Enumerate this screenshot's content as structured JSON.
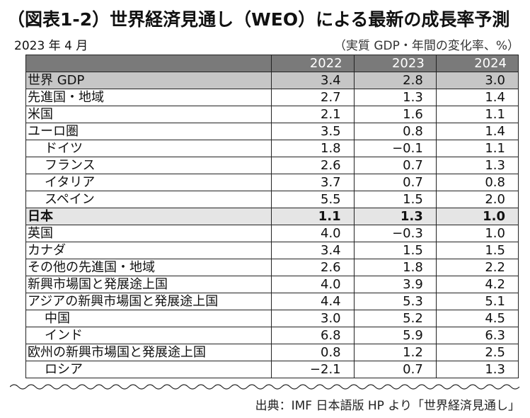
{
  "title": "（図表1-2）世界経済見通し（WEO）による最新の成長率予測",
  "date": "2023 年 4 月",
  "unit": "（実質 GDP・年間の変化率、%）",
  "columns": [
    "2022",
    "2023",
    "2024"
  ],
  "rows": [
    {
      "label": "世界 GDP",
      "values": [
        "3.4",
        "2.8",
        "3.0"
      ],
      "indent": false,
      "style": "world"
    },
    {
      "label": "先進国・地域",
      "values": [
        "2.7",
        "1.3",
        "1.4"
      ],
      "indent": false,
      "style": ""
    },
    {
      "label": "米国",
      "values": [
        "2.1",
        "1.6",
        "1.1"
      ],
      "indent": false,
      "style": ""
    },
    {
      "label": "ユーロ圏",
      "values": [
        "3.5",
        "0.8",
        "1.4"
      ],
      "indent": false,
      "style": ""
    },
    {
      "label": "ドイツ",
      "values": [
        "1.8",
        "−0.1",
        "1.1"
      ],
      "indent": true,
      "style": ""
    },
    {
      "label": "フランス",
      "values": [
        "2.6",
        "0.7",
        "1.3"
      ],
      "indent": true,
      "style": ""
    },
    {
      "label": "イタリア",
      "values": [
        "3.7",
        "0.7",
        "0.8"
      ],
      "indent": true,
      "style": ""
    },
    {
      "label": "スペイン",
      "values": [
        "5.5",
        "1.5",
        "2.0"
      ],
      "indent": true,
      "style": ""
    },
    {
      "label": "日本",
      "values": [
        "1.1",
        "1.3",
        "1.0"
      ],
      "indent": false,
      "style": "japan"
    },
    {
      "label": "英国",
      "values": [
        "4.0",
        "−0.3",
        "1.0"
      ],
      "indent": false,
      "style": ""
    },
    {
      "label": "カナダ",
      "values": [
        "3.4",
        "1.5",
        "1.5"
      ],
      "indent": false,
      "style": ""
    },
    {
      "label": "その他の先進国・地域",
      "values": [
        "2.6",
        "1.8",
        "2.2"
      ],
      "indent": false,
      "style": ""
    },
    {
      "label": "新興市場国と発展途上国",
      "values": [
        "4.0",
        "3.9",
        "4.2"
      ],
      "indent": false,
      "style": ""
    },
    {
      "label": "アジアの新興市場国と発展途上国",
      "values": [
        "4.4",
        "5.3",
        "5.1"
      ],
      "indent": false,
      "style": ""
    },
    {
      "label": "中国",
      "values": [
        "3.0",
        "5.2",
        "4.5"
      ],
      "indent": true,
      "style": ""
    },
    {
      "label": "インド",
      "values": [
        "6.8",
        "5.9",
        "6.3"
      ],
      "indent": true,
      "style": ""
    },
    {
      "label": "欧州の新興市場国と発展途上国",
      "values": [
        "0.8",
        "1.2",
        "2.5"
      ],
      "indent": false,
      "style": ""
    },
    {
      "label": "ロシア",
      "values": [
        "−2.1",
        "0.7",
        "1.3"
      ],
      "indent": true,
      "style": ""
    }
  ],
  "source": "出典：IMF 日本語版 HP より「世界経済見通し」"
}
